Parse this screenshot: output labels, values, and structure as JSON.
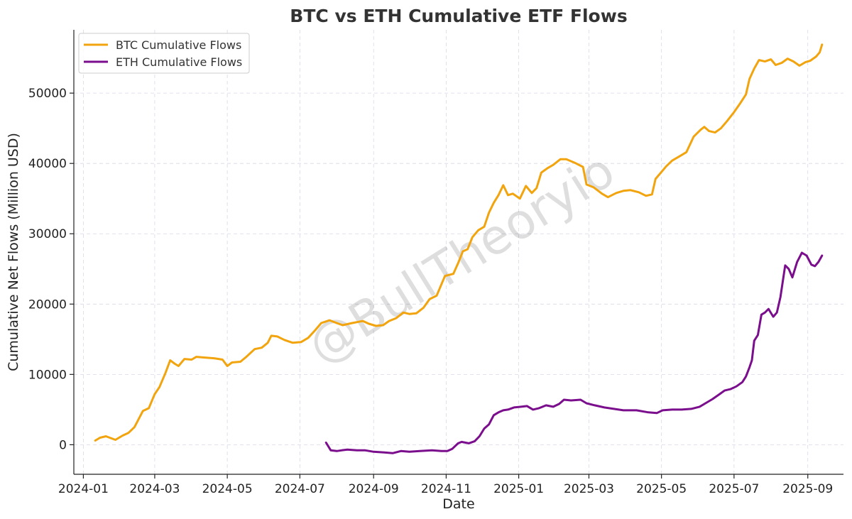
{
  "chart_data": {
    "type": "line",
    "title": "BTC vs ETH Cumulative ETF Flows",
    "xlabel": "Date",
    "ylabel": "Cumulative Net Flows (Million USD)",
    "x_ticks": [
      "2024-01",
      "2024-03",
      "2024-05",
      "2024-07",
      "2024-09",
      "2024-11",
      "2025-01",
      "2025-03",
      "2025-05",
      "2025-07",
      "2025-09"
    ],
    "y_ticks": [
      0,
      10000,
      20000,
      30000,
      40000,
      50000
    ],
    "xlim": [
      "2023-12-24",
      "2025-10-01"
    ],
    "ylim": [
      -4200,
      59000
    ],
    "grid": true,
    "legend_position": "top-left",
    "watermark": "@BullTheoryio",
    "series": [
      {
        "name": "BTC Cumulative Flows",
        "color": "#F2A40E",
        "points": [
          [
            "2024-01-11",
            600
          ],
          [
            "2024-01-15",
            1000
          ],
          [
            "2024-01-20",
            1200
          ],
          [
            "2024-01-28",
            700
          ],
          [
            "2024-02-03",
            1300
          ],
          [
            "2024-02-08",
            1700
          ],
          [
            "2024-02-13",
            2500
          ],
          [
            "2024-02-20",
            4800
          ],
          [
            "2024-02-25",
            5200
          ],
          [
            "2024-03-01",
            7200
          ],
          [
            "2024-03-05",
            8200
          ],
          [
            "2024-03-10",
            10200
          ],
          [
            "2024-03-14",
            12000
          ],
          [
            "2024-03-18",
            11500
          ],
          [
            "2024-03-21",
            11200
          ],
          [
            "2024-03-26",
            12200
          ],
          [
            "2024-04-01",
            12100
          ],
          [
            "2024-04-05",
            12500
          ],
          [
            "2024-04-12",
            12400
          ],
          [
            "2024-04-20",
            12300
          ],
          [
            "2024-04-27",
            12100
          ],
          [
            "2024-05-01",
            11200
          ],
          [
            "2024-05-05",
            11700
          ],
          [
            "2024-05-12",
            11800
          ],
          [
            "2024-05-17",
            12500
          ],
          [
            "2024-05-24",
            13600
          ],
          [
            "2024-05-30",
            13800
          ],
          [
            "2024-06-04",
            14500
          ],
          [
            "2024-06-07",
            15500
          ],
          [
            "2024-06-12",
            15400
          ],
          [
            "2024-06-18",
            14900
          ],
          [
            "2024-06-25",
            14500
          ],
          [
            "2024-07-02",
            14600
          ],
          [
            "2024-07-08",
            15200
          ],
          [
            "2024-07-14",
            16300
          ],
          [
            "2024-07-19",
            17300
          ],
          [
            "2024-07-26",
            17700
          ],
          [
            "2024-08-01",
            17300
          ],
          [
            "2024-08-06",
            17000
          ],
          [
            "2024-08-14",
            17300
          ],
          [
            "2024-08-23",
            17600
          ],
          [
            "2024-08-28",
            17200
          ],
          [
            "2024-09-03",
            16900
          ],
          [
            "2024-09-09",
            17000
          ],
          [
            "2024-09-14",
            17600
          ],
          [
            "2024-09-20",
            18000
          ],
          [
            "2024-09-26",
            18800
          ],
          [
            "2024-10-01",
            18600
          ],
          [
            "2024-10-07",
            18700
          ],
          [
            "2024-10-13",
            19500
          ],
          [
            "2024-10-18",
            20700
          ],
          [
            "2024-10-24",
            21200
          ],
          [
            "2024-10-31",
            24000
          ],
          [
            "2024-11-07",
            24300
          ],
          [
            "2024-11-11",
            25800
          ],
          [
            "2024-11-15",
            27500
          ],
          [
            "2024-11-19",
            27800
          ],
          [
            "2024-11-23",
            29500
          ],
          [
            "2024-11-28",
            30500
          ],
          [
            "2024-12-03",
            31000
          ],
          [
            "2024-12-07",
            33000
          ],
          [
            "2024-12-11",
            34400
          ],
          [
            "2024-12-15",
            35500
          ],
          [
            "2024-12-19",
            36900
          ],
          [
            "2024-12-23",
            35500
          ],
          [
            "2024-12-27",
            35700
          ],
          [
            "2025-01-02",
            35000
          ],
          [
            "2025-01-07",
            36800
          ],
          [
            "2025-01-12",
            35800
          ],
          [
            "2025-01-16",
            36500
          ],
          [
            "2025-01-20",
            38700
          ],
          [
            "2025-01-25",
            39300
          ],
          [
            "2025-01-30",
            39800
          ],
          [
            "2025-02-05",
            40600
          ],
          [
            "2025-02-10",
            40600
          ],
          [
            "2025-02-17",
            40100
          ],
          [
            "2025-02-24",
            39500
          ],
          [
            "2025-02-27",
            37000
          ],
          [
            "2025-03-05",
            36600
          ],
          [
            "2025-03-12",
            35700
          ],
          [
            "2025-03-17",
            35200
          ],
          [
            "2025-03-24",
            35800
          ],
          [
            "2025-03-30",
            36100
          ],
          [
            "2025-04-05",
            36200
          ],
          [
            "2025-04-12",
            35900
          ],
          [
            "2025-04-18",
            35400
          ],
          [
            "2025-04-23",
            35600
          ],
          [
            "2025-04-26",
            37800
          ],
          [
            "2025-04-30",
            38600
          ],
          [
            "2025-05-05",
            39600
          ],
          [
            "2025-05-10",
            40400
          ],
          [
            "2025-05-16",
            41000
          ],
          [
            "2025-05-22",
            41600
          ],
          [
            "2025-05-28",
            43800
          ],
          [
            "2025-06-03",
            44800
          ],
          [
            "2025-06-06",
            45200
          ],
          [
            "2025-06-10",
            44600
          ],
          [
            "2025-06-15",
            44400
          ],
          [
            "2025-06-20",
            45000
          ],
          [
            "2025-06-25",
            46000
          ],
          [
            "2025-07-01",
            47300
          ],
          [
            "2025-07-06",
            48500
          ],
          [
            "2025-07-11",
            49800
          ],
          [
            "2025-07-14",
            52000
          ],
          [
            "2025-07-18",
            53500
          ],
          [
            "2025-07-22",
            54700
          ],
          [
            "2025-07-27",
            54500
          ],
          [
            "2025-08-01",
            54800
          ],
          [
            "2025-08-05",
            54000
          ],
          [
            "2025-08-10",
            54300
          ],
          [
            "2025-08-15",
            54900
          ],
          [
            "2025-08-20",
            54500
          ],
          [
            "2025-08-25",
            53900
          ],
          [
            "2025-08-30",
            54400
          ],
          [
            "2025-09-03",
            54600
          ],
          [
            "2025-09-08",
            55200
          ],
          [
            "2025-09-11",
            55800
          ],
          [
            "2025-09-13",
            56900
          ]
        ]
      },
      {
        "name": "ETH Cumulative Flows",
        "color": "#7A0E8C",
        "points": [
          [
            "2024-07-23",
            300
          ],
          [
            "2024-07-27",
            -800
          ],
          [
            "2024-08-01",
            -900
          ],
          [
            "2024-08-05",
            -800
          ],
          [
            "2024-08-10",
            -700
          ],
          [
            "2024-08-18",
            -800
          ],
          [
            "2024-08-25",
            -800
          ],
          [
            "2024-09-01",
            -1000
          ],
          [
            "2024-09-10",
            -1100
          ],
          [
            "2024-09-17",
            -1200
          ],
          [
            "2024-09-24",
            -900
          ],
          [
            "2024-10-01",
            -1000
          ],
          [
            "2024-10-10",
            -900
          ],
          [
            "2024-10-20",
            -800
          ],
          [
            "2024-10-28",
            -900
          ],
          [
            "2024-11-02",
            -900
          ],
          [
            "2024-11-06",
            -600
          ],
          [
            "2024-11-11",
            200
          ],
          [
            "2024-11-14",
            400
          ],
          [
            "2024-11-20",
            200
          ],
          [
            "2024-11-25",
            500
          ],
          [
            "2024-11-29",
            1200
          ],
          [
            "2024-12-03",
            2300
          ],
          [
            "2024-12-07",
            2900
          ],
          [
            "2024-12-11",
            4200
          ],
          [
            "2024-12-15",
            4600
          ],
          [
            "2024-12-19",
            4900
          ],
          [
            "2024-12-23",
            5000
          ],
          [
            "2024-12-28",
            5300
          ],
          [
            "2025-01-03",
            5400
          ],
          [
            "2025-01-08",
            5500
          ],
          [
            "2025-01-13",
            5000
          ],
          [
            "2025-01-18",
            5200
          ],
          [
            "2025-01-24",
            5600
          ],
          [
            "2025-01-30",
            5400
          ],
          [
            "2025-02-04",
            5800
          ],
          [
            "2025-02-08",
            6400
          ],
          [
            "2025-02-14",
            6300
          ],
          [
            "2025-02-22",
            6400
          ],
          [
            "2025-02-27",
            5900
          ],
          [
            "2025-03-06",
            5600
          ],
          [
            "2025-03-14",
            5300
          ],
          [
            "2025-03-22",
            5100
          ],
          [
            "2025-03-30",
            4900
          ],
          [
            "2025-04-10",
            4900
          ],
          [
            "2025-04-20",
            4600
          ],
          [
            "2025-04-27",
            4500
          ],
          [
            "2025-05-02",
            4900
          ],
          [
            "2025-05-10",
            5000
          ],
          [
            "2025-05-18",
            5000
          ],
          [
            "2025-05-26",
            5100
          ],
          [
            "2025-06-02",
            5400
          ],
          [
            "2025-06-08",
            6000
          ],
          [
            "2025-06-13",
            6500
          ],
          [
            "2025-06-18",
            7100
          ],
          [
            "2025-06-23",
            7700
          ],
          [
            "2025-06-28",
            7900
          ],
          [
            "2025-07-03",
            8300
          ],
          [
            "2025-07-08",
            8900
          ],
          [
            "2025-07-11",
            9700
          ],
          [
            "2025-07-14",
            11000
          ],
          [
            "2025-07-16",
            12000
          ],
          [
            "2025-07-18",
            14800
          ],
          [
            "2025-07-21",
            15600
          ],
          [
            "2025-07-24",
            18500
          ],
          [
            "2025-07-27",
            18800
          ],
          [
            "2025-07-30",
            19300
          ],
          [
            "2025-08-03",
            18200
          ],
          [
            "2025-08-06",
            18800
          ],
          [
            "2025-08-09",
            21000
          ],
          [
            "2025-08-13",
            25500
          ],
          [
            "2025-08-16",
            25000
          ],
          [
            "2025-08-19",
            23800
          ],
          [
            "2025-08-23",
            26000
          ],
          [
            "2025-08-27",
            27300
          ],
          [
            "2025-08-31",
            26900
          ],
          [
            "2025-09-04",
            25600
          ],
          [
            "2025-09-07",
            25400
          ],
          [
            "2025-09-10",
            26000
          ],
          [
            "2025-09-13",
            26900
          ]
        ]
      }
    ]
  }
}
